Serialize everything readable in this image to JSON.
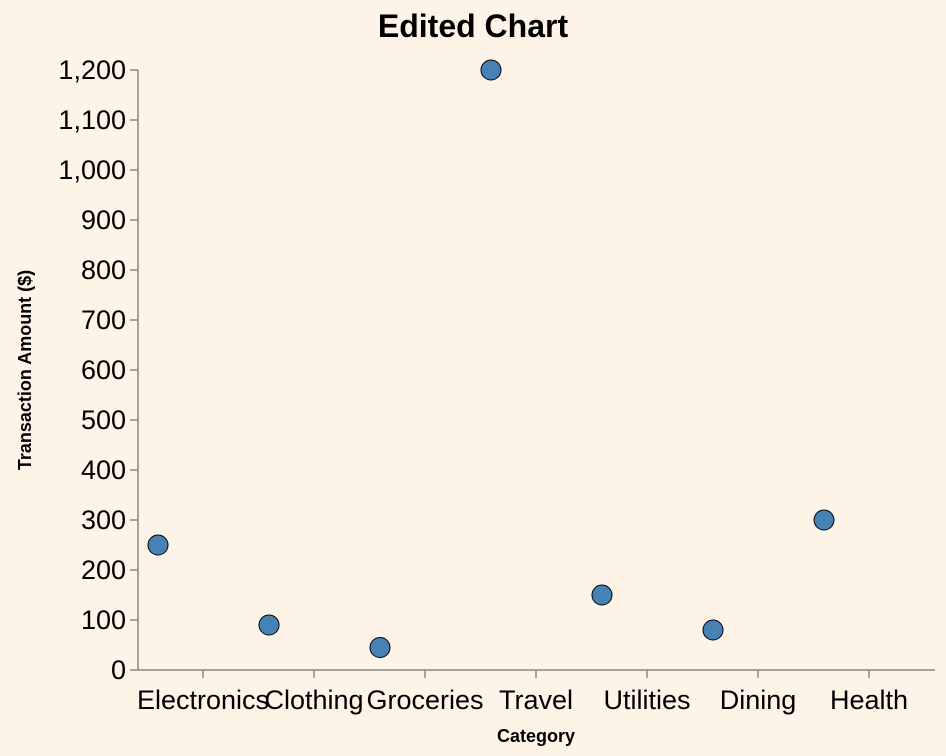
{
  "chart_data": {
    "type": "scatter",
    "title": "Edited Chart",
    "xlabel": "Category",
    "ylabel": "Transaction Amount ($)",
    "categories": [
      "Electronics",
      "Clothing",
      "Groceries",
      "Travel",
      "Utilities",
      "Dining",
      "Health"
    ],
    "tick_labels_x": [
      "Electronics",
      "Clothing",
      "Groceries",
      "Travel",
      "Utilities",
      "Dining",
      "Health"
    ],
    "values": [
      250,
      90,
      45,
      1200,
      150,
      80,
      300
    ],
    "ylim": [
      0,
      1200
    ],
    "yticks": [
      0,
      100,
      200,
      300,
      400,
      500,
      600,
      700,
      800,
      900,
      1000,
      1100,
      1200
    ],
    "yticks_labels": [
      "0",
      "100",
      "200",
      "300",
      "400",
      "500",
      "600",
      "700",
      "800",
      "900",
      "1,000",
      "1,100",
      "1,200"
    ],
    "grid": false,
    "point_color": "#4682b4",
    "background": "#fdf3e7"
  }
}
